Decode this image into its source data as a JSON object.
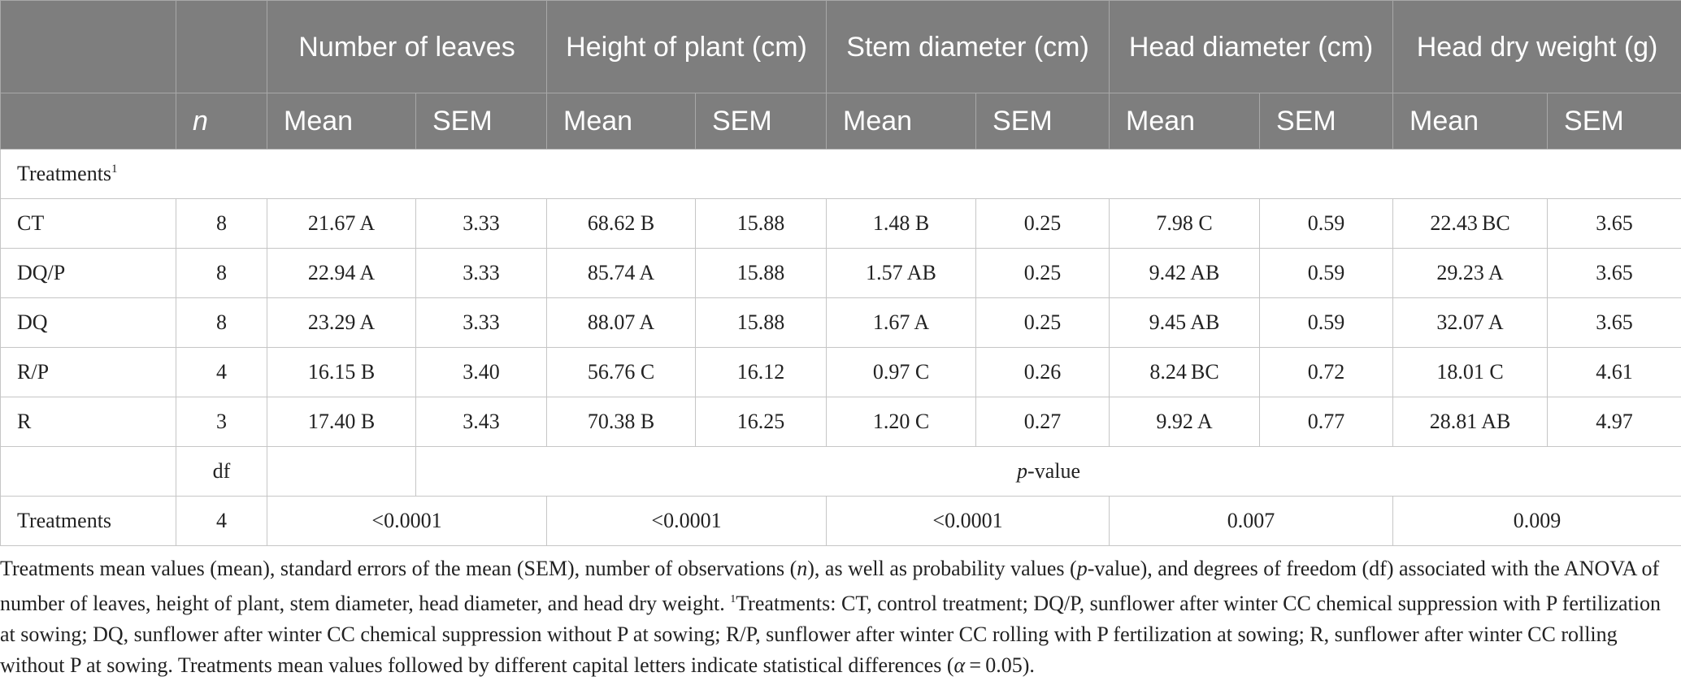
{
  "header": {
    "groups": [
      {
        "label": "Number of leaves"
      },
      {
        "label": "Height of plant (cm)"
      },
      {
        "label": "Stem diameter (cm)"
      },
      {
        "label": "Head diameter (cm)"
      },
      {
        "label": "Head dry weight (g)"
      }
    ],
    "n_label": "n",
    "mean_label": "Mean",
    "sem_label": "SEM"
  },
  "section_label": "Treatments",
  "section_sup": "1",
  "rows": [
    {
      "name": "CT",
      "n": "8",
      "cells": [
        "21.67 A",
        "3.33",
        "68.62 B",
        "15.88",
        "1.48 B",
        "0.25",
        "7.98 C",
        "0.59",
        "22.43 BC",
        "3.65"
      ]
    },
    {
      "name": "DQ/P",
      "n": "8",
      "cells": [
        "22.94 A",
        "3.33",
        "85.74 A",
        "15.88",
        "1.57 AB",
        "0.25",
        "9.42 AB",
        "0.59",
        "29.23 A",
        "3.65"
      ]
    },
    {
      "name": "DQ",
      "n": "8",
      "cells": [
        "23.29 A",
        "3.33",
        "88.07 A",
        "15.88",
        "1.67 A",
        "0.25",
        "9.45 AB",
        "0.59",
        "32.07 A",
        "3.65"
      ]
    },
    {
      "name": "R/P",
      "n": "4",
      "cells": [
        "16.15 B",
        "3.40",
        "56.76 C",
        "16.12",
        "0.97 C",
        "0.26",
        "8.24 BC",
        "0.72",
        "18.01 C",
        "4.61"
      ]
    },
    {
      "name": "R",
      "n": "3",
      "cells": [
        "17.40 B",
        "3.43",
        "70.38 B",
        "16.25",
        "1.20 C",
        "0.27",
        "9.92 A",
        "0.77",
        "28.81 AB",
        "4.97"
      ]
    }
  ],
  "df_label": "df",
  "pvalue_label_italic": "p",
  "pvalue_label_rest": "-value",
  "anova": {
    "name": "Treatments",
    "df": "4",
    "pvalues": [
      "<0.0001",
      "<0.0001",
      "<0.0001",
      "0.007",
      "0.009"
    ]
  },
  "caption": {
    "p1": "Treatments mean values (mean), standard errors of the mean (SEM), number of observations (",
    "p1_n": "n",
    "p2": "), as well as probability values (",
    "p2_p": "p",
    "p3": "-value), and degrees of freedom (df) associated with the ANOVA of number of leaves, height of plant, stem diameter, head diameter, and head dry weight. ",
    "p3_sup": "1",
    "p4": "Treatments: CT, control treatment; DQ/P, sunflower after winter CC chemical suppression with P fertilization at sowing; DQ, sunflower after winter CC chemical suppression without P at sowing; R/P, sunflower after winter CC rolling with P fertilization at sowing; R, sunflower after winter CC rolling without P at sowing. Treatments mean values followed by different capital letters indicate statistical differences (",
    "p4_alpha": "α",
    "p5": " = 0.05)."
  }
}
